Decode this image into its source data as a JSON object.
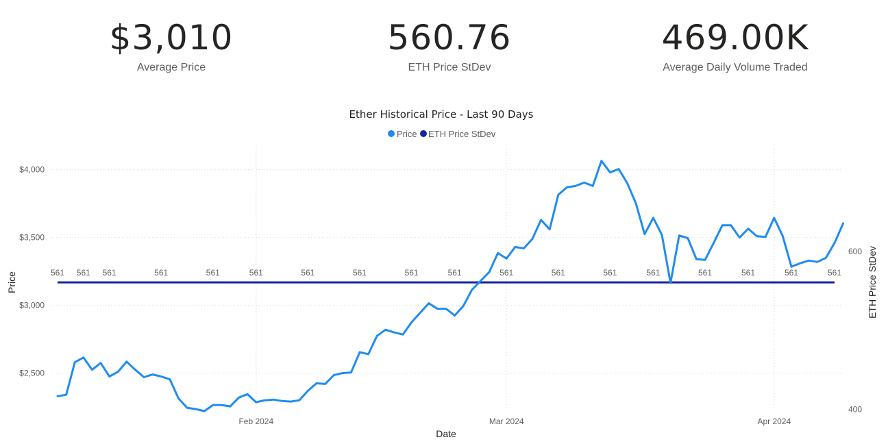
{
  "kpis": [
    {
      "value": "$3,010",
      "label": "Average Price"
    },
    {
      "value": "560.76",
      "label": "ETH Price StDev"
    },
    {
      "value": "469.00K",
      "label": "Average Daily Volume Traded"
    }
  ],
  "colors": {
    "price": "#1f8cf0",
    "stdev": "#12239e",
    "grid": "#d8d8d8",
    "text": "#605e5c"
  },
  "chart_data": {
    "type": "line",
    "title": "Ether Historical Price - Last 90 Days",
    "xlabel": "Date",
    "ylabel": "Price",
    "y2label": "ETH Price StDev",
    "legend": {
      "placement": "top-center",
      "entries": [
        "Price",
        "ETH Price StDev"
      ]
    },
    "x_start": "2024-01-09",
    "x_end": "2024-04-08",
    "x_ticks": [
      {
        "date": "2024-02-01",
        "label": "Feb 2024"
      },
      {
        "date": "2024-03-01",
        "label": "Mar 2024"
      },
      {
        "date": "2024-04-01",
        "label": "Apr 2024"
      }
    ],
    "ylim": [
      2220,
      4150
    ],
    "y_ticks": [
      {
        "value": 2500,
        "label": "$2,500"
      },
      {
        "value": 3000,
        "label": "$3,000"
      },
      {
        "value": 3500,
        "label": "$3,500"
      },
      {
        "value": 4000,
        "label": "$4,000"
      }
    ],
    "y2lim": [
      398,
      729
    ],
    "y2_ticks": [
      {
        "value": 400,
        "label": "400"
      },
      {
        "value": 600,
        "label": "600"
      }
    ],
    "grid": true,
    "series": [
      {
        "name": "Price",
        "axis": "left",
        "values": [
          2330,
          2340,
          2580,
          2615,
          2525,
          2575,
          2475,
          2510,
          2585,
          2525,
          2470,
          2490,
          2475,
          2455,
          2315,
          2245,
          2235,
          2220,
          2265,
          2265,
          2255,
          2320,
          2345,
          2285,
          2300,
          2305,
          2295,
          2290,
          2300,
          2370,
          2425,
          2420,
          2485,
          2500,
          2505,
          2655,
          2640,
          2775,
          2820,
          2800,
          2785,
          2875,
          2945,
          3015,
          2975,
          2975,
          2925,
          2995,
          3115,
          3180,
          3245,
          3385,
          3345,
          3430,
          3420,
          3490,
          3630,
          3560,
          3815,
          3870,
          3880,
          3905,
          3880,
          4065,
          3980,
          4005,
          3900,
          3750,
          3525,
          3645,
          3520,
          3165,
          3515,
          3495,
          3340,
          3335,
          3460,
          3590,
          3590,
          3500,
          3565,
          3510,
          3505,
          3645,
          3510,
          3285,
          3310,
          3330,
          3320,
          3350,
          3460,
          3605
        ]
      },
      {
        "name": "ETH Price StDev",
        "axis": "right",
        "value": 560.76,
        "data_label": "561",
        "label_dates": [
          "2024-01-09",
          "2024-01-12",
          "2024-01-15",
          "2024-01-21",
          "2024-01-27",
          "2024-02-01",
          "2024-02-07",
          "2024-02-13",
          "2024-02-19",
          "2024-02-24",
          "2024-03-01",
          "2024-03-07",
          "2024-03-13",
          "2024-03-18",
          "2024-03-24",
          "2024-03-29",
          "2024-04-03",
          "2024-04-08"
        ]
      }
    ]
  }
}
